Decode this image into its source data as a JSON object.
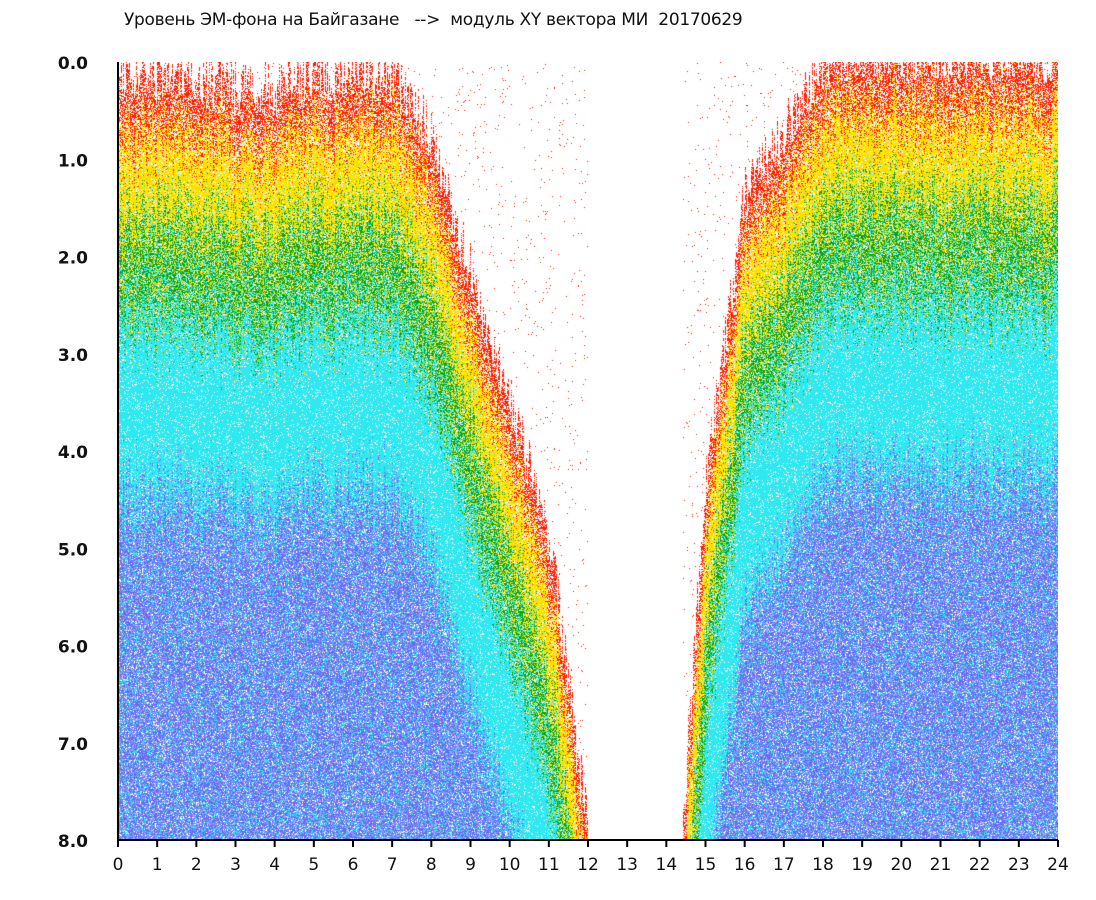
{
  "chart_data": {
    "type": "scatter",
    "title": "Уровень ЭМ-фона на Байгазане   -->  модуль XY вектора МИ  20170629",
    "xlabel": "",
    "ylabel": "",
    "xlim": [
      0,
      24
    ],
    "ylim": [
      8.0,
      0.0
    ],
    "x_ticks": [
      "0",
      "1",
      "2",
      "3",
      "4",
      "5",
      "6",
      "7",
      "8",
      "9",
      "10",
      "11",
      "12",
      "13",
      "14",
      "15",
      "16",
      "17",
      "18",
      "19",
      "20",
      "21",
      "22",
      "23",
      "24"
    ],
    "y_ticks": [
      "0.0",
      "1.0",
      "2.0",
      "3.0",
      "4.0",
      "5.0",
      "6.0",
      "7.0",
      "8.0"
    ],
    "grid": false,
    "density_front": {
      "hour": [
        0,
        1,
        2,
        3,
        4,
        5,
        6,
        7,
        8,
        9,
        10,
        11,
        11.8,
        12,
        14.4,
        15,
        16,
        17,
        18,
        19,
        20,
        21,
        22,
        23,
        24
      ],
      "min_value": [
        0.2,
        0.3,
        0.3,
        0.4,
        0.4,
        0.3,
        0.2,
        0.3,
        0.9,
        2.3,
        3.6,
        5.0,
        7.5,
        8.0,
        8.0,
        4.5,
        1.5,
        0.9,
        0.1,
        0.05,
        0.05,
        0.05,
        0.05,
        0.05,
        0.1
      ]
    },
    "color_scale": [
      "#ff1a00",
      "#ffe000",
      "#10a010",
      "#30e8f0",
      "#6a6af0"
    ]
  }
}
